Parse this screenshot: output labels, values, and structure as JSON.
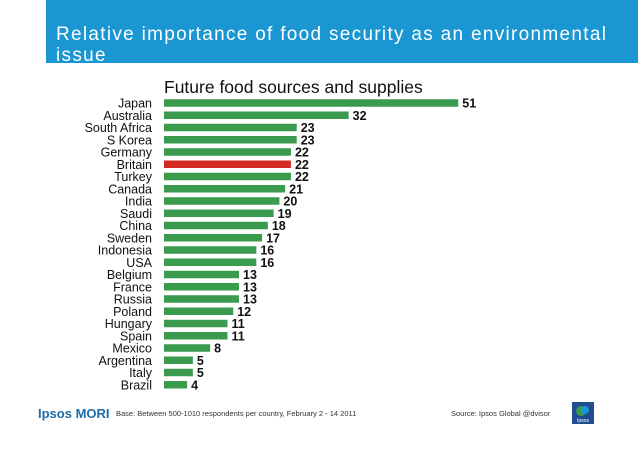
{
  "header": {
    "title": "Relative importance of food security as an environmental issue",
    "color": "#1a96d2"
  },
  "chart_data": {
    "type": "bar",
    "orientation": "horizontal",
    "title": "Future food sources and supplies",
    "xlabel": "",
    "ylabel": "",
    "categories": [
      "Japan",
      "Australia",
      "South Africa",
      "S Korea",
      "Germany",
      "Britain",
      "Turkey",
      "Canada",
      "India",
      "Saudi",
      "China",
      "Sweden",
      "Indonesia",
      "USA",
      "Belgium",
      "France",
      "Russia",
      "Poland",
      "Hungary",
      "Spain",
      "Mexico",
      "Argentina",
      "Italy",
      "Brazil"
    ],
    "values": [
      51,
      32,
      23,
      23,
      22,
      22,
      22,
      21,
      20,
      19,
      18,
      17,
      16,
      16,
      13,
      13,
      13,
      12,
      11,
      11,
      8,
      5,
      5,
      4
    ],
    "highlight": "Britain",
    "bar_color": "#3a9a4e",
    "highlight_color": "#d42a26",
    "grid": false,
    "legend": "none"
  },
  "footer": {
    "logo_text": "Ipsos MORI",
    "note": "Base: Between 500-1010 respondents per country, February 2 - 14 2011",
    "source": "Source: Ipsos Global @dvisor",
    "badge_text": "Ipsos"
  }
}
